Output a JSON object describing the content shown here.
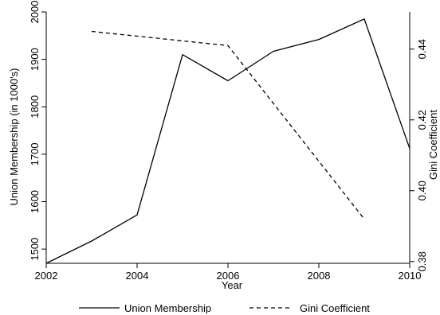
{
  "chart_data": {
    "type": "line",
    "xlabel": "Year",
    "x_ticks": [
      "2002",
      "2004",
      "2006",
      "2008",
      "2010"
    ],
    "xlim": [
      2002,
      2010
    ],
    "y_left": {
      "label": "Union Membership (in 1000's)",
      "ylim": [
        1470,
        2000
      ],
      "ticks": [
        "1500",
        "1600",
        "1700",
        "1800",
        "1900",
        "2000"
      ]
    },
    "y_right": {
      "label": "Gini Coefficient",
      "ylim": [
        0.3795,
        0.4505
      ],
      "ticks": [
        "0.38",
        "0.40",
        "0.42",
        "0.44"
      ]
    },
    "grid": false,
    "legend_position": "bottom",
    "series": [
      {
        "name": "Union Membership",
        "axis": "left",
        "style": "solid",
        "x": [
          2002,
          2003,
          2004,
          2005,
          2006,
          2007,
          2008,
          2009,
          2010
        ],
        "values": [
          1470,
          1517,
          1572,
          1910,
          1855,
          1917,
          1942,
          1985,
          1712
        ]
      },
      {
        "name": "Gini Coefficient",
        "axis": "right",
        "style": "dashed",
        "x": [
          2003,
          2006,
          2009
        ],
        "values": [
          0.445,
          0.441,
          0.392
        ]
      }
    ]
  }
}
